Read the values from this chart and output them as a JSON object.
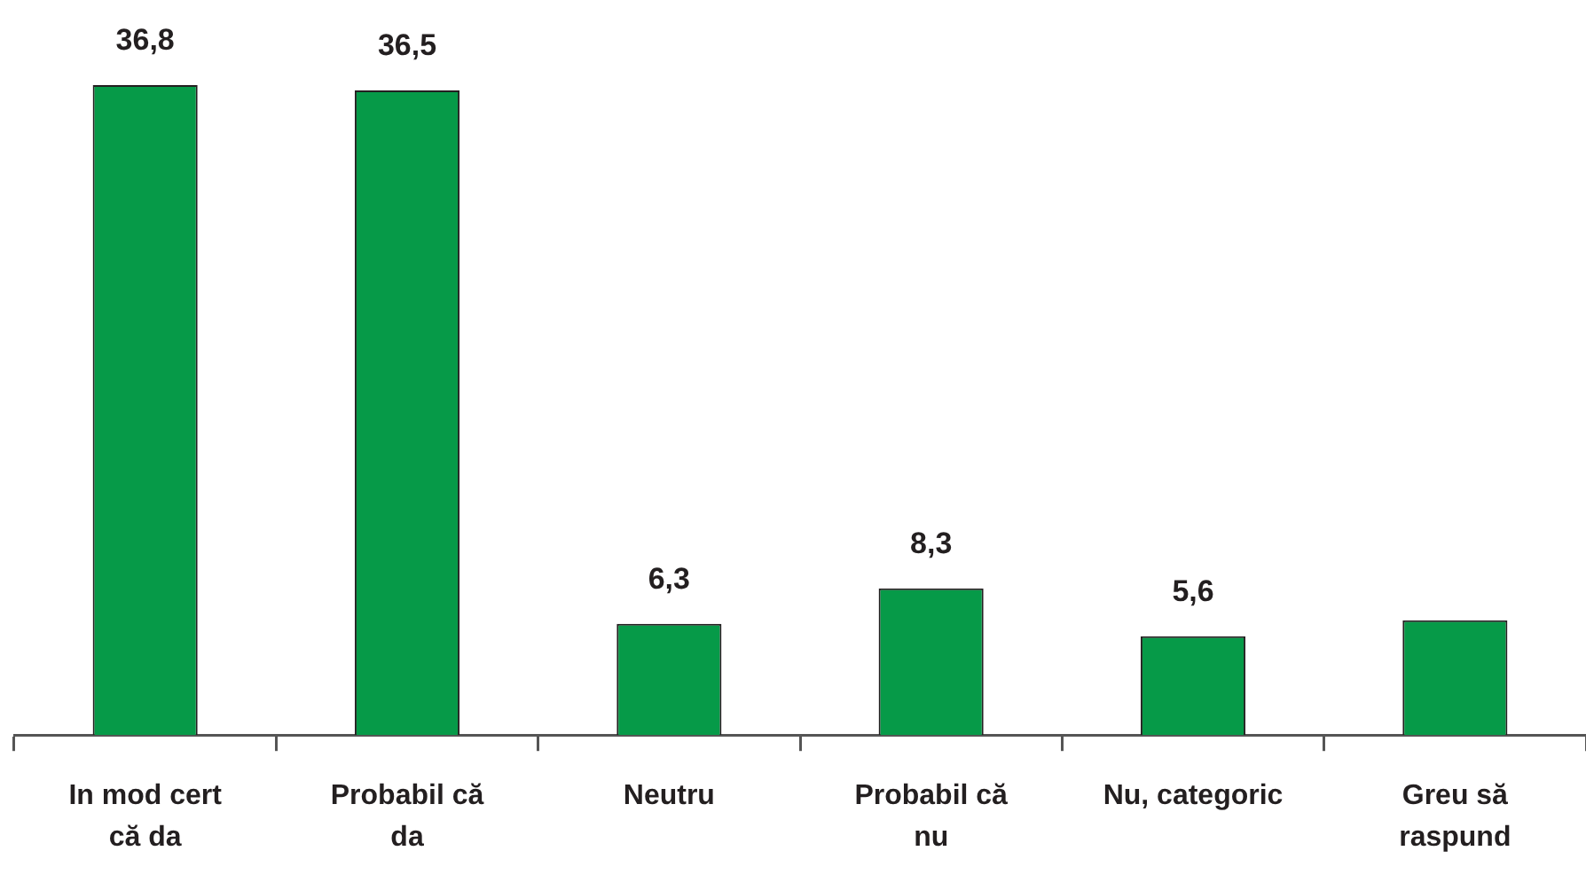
{
  "chart_data": {
    "type": "bar",
    "categories": [
      "In mod cert\ncă da",
      "Probabil că\nda",
      "Neutru",
      "Probabil că\nnu",
      "Nu, categoric",
      "Greu să\nraspund"
    ],
    "values": [
      36.8,
      36.5,
      6.3,
      8.3,
      5.6,
      6.5
    ],
    "value_labels": [
      "36,8",
      "36,5",
      "6,3",
      "8,3",
      "5,6",
      null
    ],
    "color": "#069a48",
    "grid": false,
    "legend": false,
    "tick_labels": "x"
  }
}
